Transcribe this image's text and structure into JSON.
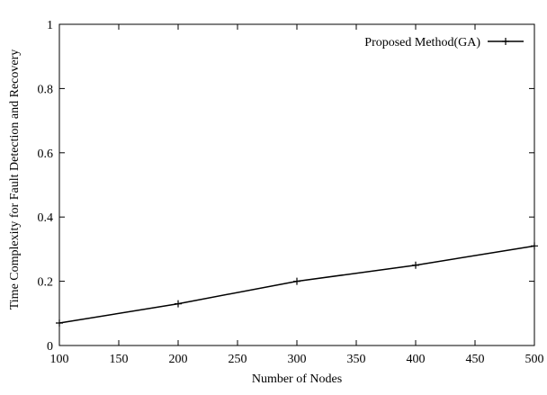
{
  "chart_data": {
    "type": "line",
    "title": "",
    "xlabel": "Number of Nodes",
    "ylabel": "Time Complexity for Fault Detection and Recovery",
    "xlim": [
      100,
      500
    ],
    "ylim": [
      0,
      1
    ],
    "x_ticks": [
      "100",
      "150",
      "200",
      "250",
      "300",
      "350",
      "400",
      "450",
      "500"
    ],
    "y_ticks": [
      "0",
      "0.2",
      "0.4",
      "0.6",
      "0.8",
      "1"
    ],
    "grid": false,
    "legend_position": "top-right",
    "x": [
      100,
      200,
      300,
      400,
      500
    ],
    "series": [
      {
        "name": "Proposed Method(GA)",
        "marker": "plus",
        "color": "#000000",
        "values": [
          0.07,
          0.13,
          0.2,
          0.25,
          0.31
        ]
      }
    ]
  }
}
